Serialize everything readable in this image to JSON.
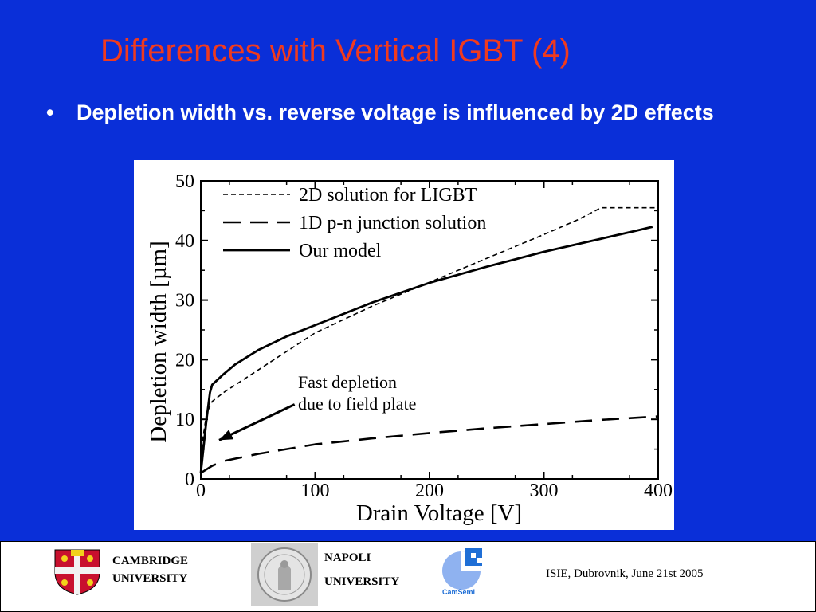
{
  "slide": {
    "title": "Differences with Vertical IGBT (4)",
    "bullet_symbol": "•",
    "bullet": "Depletion width vs. reverse voltage is influenced by 2D effects"
  },
  "colors": {
    "background": "#0a2fd8",
    "title": "#f03a1e",
    "bullet": "#ffffff",
    "camsemi": "#1f6fd6"
  },
  "chart_data": {
    "type": "line",
    "xlabel": "Drain Voltage [V]",
    "ylabel": "Depletion width [µm]",
    "xlim": [
      0,
      400
    ],
    "ylim": [
      0,
      50
    ],
    "xticks": [
      0,
      100,
      200,
      300,
      400
    ],
    "yticks": [
      0,
      10,
      20,
      30,
      40,
      50
    ],
    "x_tick_labels": [
      "0",
      "100",
      "200",
      "300",
      "400"
    ],
    "y_tick_labels": [
      "0",
      "10",
      "20",
      "30",
      "40",
      "50"
    ],
    "grid": false,
    "legend_position": "top-left",
    "series": [
      {
        "name": "2D solution for LIGBT",
        "style": "dotted-dash",
        "x": [
          0,
          2,
          5,
          10,
          20,
          40,
          60,
          80,
          100,
          150,
          200,
          250,
          300,
          330,
          350,
          375,
          400
        ],
        "y": [
          1,
          7,
          11,
          13,
          14.5,
          17,
          19.5,
          22,
          24.5,
          29,
          33,
          37,
          41,
          43.5,
          45.5,
          45.5,
          45.5
        ]
      },
      {
        "name": "1D p-n junction solution",
        "style": "long-dash",
        "x": [
          0,
          10,
          20,
          50,
          100,
          150,
          200,
          250,
          300,
          350,
          400
        ],
        "y": [
          1,
          2.2,
          3,
          4.2,
          5.8,
          6.8,
          7.7,
          8.5,
          9.2,
          9.9,
          10.5
        ]
      },
      {
        "name": "Our model",
        "style": "solid",
        "x": [
          0,
          5,
          8,
          10,
          20,
          30,
          50,
          75,
          100,
          150,
          200,
          250,
          300,
          350,
          380,
          395
        ],
        "y": [
          1,
          10,
          14.5,
          15.8,
          17.6,
          19.2,
          21.6,
          23.9,
          25.8,
          29.6,
          32.9,
          35.6,
          38.1,
          40.3,
          41.6,
          42.3
        ]
      }
    ],
    "annotation": {
      "lines": [
        "Fast depletion",
        "due to field plate"
      ],
      "arrow_tail": [
        82,
        12.5
      ],
      "arrow_head": [
        16,
        6.5
      ]
    }
  },
  "footer": {
    "cambridge_line1": "CAMBRIDGE",
    "cambridge_line2": "UNIVERSITY",
    "napoli_line1": "NAPOLI",
    "napoli_line2": "UNIVERSITY",
    "camsemi_logo": "CamSemi",
    "event": "ISIE,  Dubrovnik, June 21st 2005"
  }
}
